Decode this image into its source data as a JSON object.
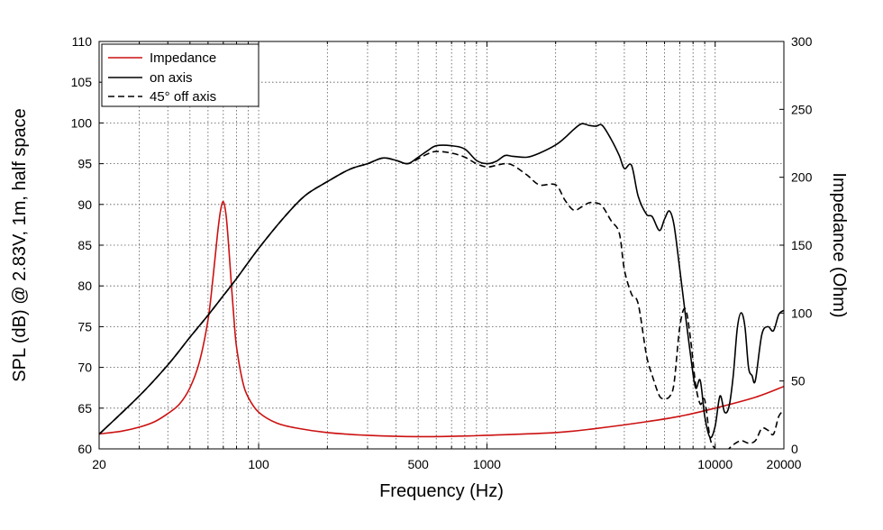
{
  "chart_data": {
    "type": "line",
    "xlabel": "Frequency (Hz)",
    "ylabel": "SPL (dB) @ 2.83V, 1m, half space",
    "y2label": "Impedance (Ohm)",
    "xscale": "log",
    "xlim": [
      20,
      20000
    ],
    "ylim": [
      60,
      110
    ],
    "y2lim": [
      0,
      300
    ],
    "grid": true,
    "legend_position": "top-left",
    "x_tick_labels": [
      "20",
      "100",
      "500",
      "1000",
      "10000",
      "20000"
    ],
    "y_tick_labels": [
      "60",
      "65",
      "70",
      "75",
      "80",
      "85",
      "90",
      "95",
      "100",
      "105",
      "110"
    ],
    "y2_tick_labels": [
      "0",
      "50",
      "100",
      "150",
      "200",
      "250",
      "300"
    ],
    "series": [
      {
        "name": "Impedance",
        "axis": "right",
        "color": "#cc1111",
        "dash": "solid",
        "x": [
          20,
          25,
          30,
          35,
          40,
          45,
          50,
          55,
          60,
          63,
          66,
          68,
          70,
          72,
          74,
          76,
          78,
          80,
          85,
          90,
          100,
          120,
          150,
          200,
          300,
          500,
          800,
          1000,
          2000,
          3000,
          5000,
          7000,
          10000,
          15000,
          20000
        ],
        "y": [
          11,
          13,
          16,
          20,
          26,
          33,
          45,
          64,
          95,
          125,
          158,
          175,
          182,
          172,
          148,
          120,
          95,
          75,
          50,
          38,
          27,
          19,
          15,
          12,
          10,
          9,
          9.5,
          10,
          12,
          15,
          20,
          24,
          30,
          38,
          46
        ]
      },
      {
        "name": "on axis",
        "axis": "left",
        "color": "#000000",
        "dash": "solid",
        "x": [
          20,
          30,
          40,
          50,
          60,
          70,
          80,
          100,
          130,
          160,
          200,
          250,
          300,
          350,
          400,
          450,
          500,
          550,
          600,
          700,
          800,
          900,
          1000,
          1100,
          1200,
          1300,
          1500,
          1700,
          2000,
          2200,
          2400,
          2600,
          2800,
          3000,
          3200,
          3500,
          3800,
          4000,
          4300,
          4600,
          5000,
          5300,
          5700,
          6000,
          6300,
          6600,
          7000,
          7400,
          7800,
          8200,
          8600,
          9000,
          9500,
          10000,
          10500,
          11000,
          11500,
          12000,
          12500,
          13000,
          13500,
          14000,
          14500,
          15000,
          16000,
          17000,
          18000,
          19000,
          20000
        ],
        "y": [
          61.8,
          66.5,
          70.3,
          73.7,
          76.4,
          78.8,
          80.9,
          84.6,
          88.5,
          91.1,
          92.8,
          94.3,
          95,
          95.7,
          95.4,
          95,
          95.8,
          96.6,
          97.2,
          97.2,
          96.8,
          95.4,
          95,
          95.3,
          96,
          95.9,
          95.8,
          96.3,
          97.3,
          98.2,
          99.2,
          99.9,
          99.7,
          99.6,
          99.7,
          98,
          96,
          94.4,
          94.8,
          91,
          88.8,
          88.5,
          86.8,
          88.2,
          89.2,
          87.5,
          82,
          76.5,
          71.5,
          67.5,
          68.4,
          64,
          61.4,
          62.8,
          66.5,
          64.5,
          65.2,
          69,
          74.8,
          76.7,
          75,
          70,
          69,
          68.4,
          74,
          75,
          74.5,
          76.5,
          77
        ]
      },
      {
        "name": "45° off axis",
        "axis": "left",
        "color": "#000000",
        "dash": "dashed",
        "x": [
          20,
          30,
          40,
          50,
          60,
          70,
          80,
          100,
          130,
          160,
          200,
          250,
          300,
          350,
          400,
          450,
          500,
          550,
          600,
          700,
          800,
          900,
          1000,
          1100,
          1200,
          1300,
          1500,
          1700,
          2000,
          2200,
          2400,
          2600,
          2800,
          3000,
          3200,
          3500,
          3800,
          4000,
          4300,
          4600,
          5000,
          5300,
          5700,
          6000,
          6300,
          6600,
          7000,
          7400,
          7800,
          8200,
          8600,
          9000,
          9500,
          10000,
          10500,
          11000,
          12000,
          13000,
          14000,
          15000,
          16000,
          17000,
          18000,
          19000,
          20000
        ],
        "y": [
          61.8,
          66.5,
          70.3,
          73.7,
          76.4,
          78.8,
          80.9,
          84.6,
          88.5,
          91.1,
          92.8,
          94.3,
          95,
          95.7,
          95.4,
          95,
          95.6,
          96.2,
          96.5,
          96.3,
          95.8,
          95,
          94.6,
          94.8,
          95,
          94.8,
          93.6,
          92.4,
          92.4,
          90.5,
          89.3,
          89.7,
          90.2,
          90.2,
          89.8,
          88,
          86.5,
          82,
          79,
          77.8,
          71.5,
          69,
          66.5,
          66.2,
          66.4,
          68,
          75,
          77.2,
          73.5,
          68,
          65.5,
          66,
          61.3,
          60,
          59.2,
          59.5,
          60.5,
          61,
          60.7,
          61,
          62.5,
          62.3,
          61.8,
          64,
          64.7
        ]
      }
    ]
  }
}
